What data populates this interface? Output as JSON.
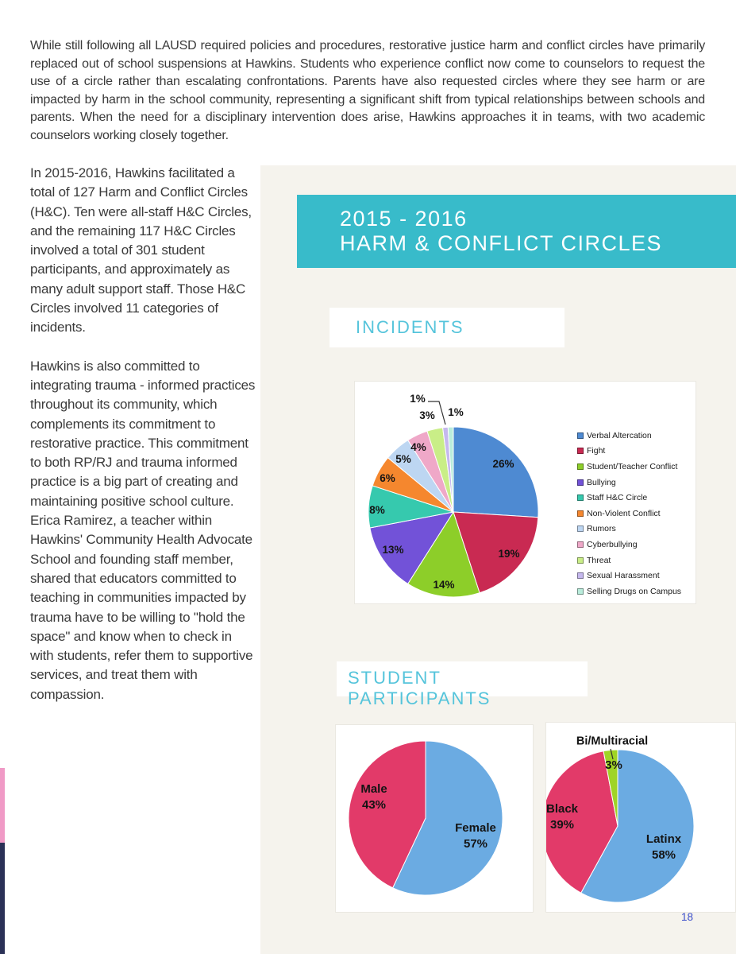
{
  "page": {
    "number": "18",
    "top_paragraph": "While still following all LAUSD required policies and procedures, restorative justice harm and conflict circles have primarily replaced out of school suspensions at Hawkins. Students who experience conflict now come to counselors to request the use of a circle rather than escalating confrontations. Parents have also requested circles where they see harm or are impacted by harm in the school community, representing a significant shift from typical relationships between schools and parents. When the need for a disciplinary intervention does arise, Hawkins approaches it in teams, with two academic counselors working closely together.",
    "left_column": {
      "para1": "In 2015-2016, Hawkins facilitated a total of 127 Harm and Conflict Circles (H&C). Ten were all-staff H&C Circles, and the remaining 117 H&C Circles involved a total of 301 student participants, and approximately as many adult support staff. Those H&C Circles involved 11 categories of incidents.",
      "para2": "Hawkins is also committed to integrating trauma - informed practices throughout its community, which complements its commitment to restorative practice. This commitment to both RP/RJ and trauma informed practice is a big part of creating and maintaining positive school culture. Erica Ramirez, a teacher within Hawkins' Community Health Advocate School and founding staff member, shared that educators committed to teaching in communities impacted by trauma have to be willing to \"hold the space\" and know when to check in with students, refer them to supportive services, and treat them with compassion."
    },
    "banner": {
      "line1": "2015 - 2016",
      "line2": "HARM & CONFLICT CIRCLES"
    },
    "section_headings": {
      "incidents": "INCIDENTS",
      "participants": "STUDENT PARTICIPANTS"
    }
  },
  "colors": {
    "banner_teal": "#38bbca",
    "heading_cyan": "#55c4db",
    "page_number_blue": "#3b4ecb",
    "panel_bg": "#f5f3ed",
    "edge_pink": "#f09ac6",
    "edge_navy": "#2b3157"
  },
  "chart_data": [
    {
      "id": "incidents",
      "type": "pie",
      "title": "INCIDENTS",
      "categories": [
        "Verbal Altercation",
        "Fight",
        "Student/Teacher Conflict",
        "Bullying",
        "Staff H&C Circle",
        "Non-Violent Conflict",
        "Rumors",
        "Cyberbullying",
        "Threat",
        "Sexual Harassment",
        "Selling Drugs on Campus"
      ],
      "values": [
        26,
        19,
        14,
        13,
        8,
        6,
        5,
        4,
        3,
        1,
        1
      ],
      "labels": [
        "26%",
        "19%",
        "14%",
        "13%",
        "8%",
        "6%",
        "5%",
        "4%",
        "3%",
        "1%",
        "1%"
      ],
      "colors": [
        "#4e8ad2",
        "#c92a52",
        "#8dce29",
        "#7252d8",
        "#36c9ae",
        "#f5872e",
        "#bdd6f2",
        "#efa8c8",
        "#c9ee87",
        "#c5b8ee",
        "#b9ecdb"
      ],
      "legend_position": "right",
      "start_angle_deg": 0,
      "direction": "clockwise",
      "label_font_px": 13.5,
      "label_positions": [
        [
          63,
          -60
        ],
        [
          70,
          53
        ],
        [
          -12,
          92
        ],
        [
          -76,
          48
        ],
        [
          -96,
          -2
        ],
        [
          -83,
          -42
        ],
        [
          -63,
          -66
        ],
        [
          -44,
          -81
        ],
        [
          -33,
          -121
        ],
        [
          -45,
          -142
        ],
        [
          3,
          -125
        ]
      ],
      "leader_lines": [
        {
          "points": [
            [
              -32,
              -139
            ],
            [
              -18,
              -139
            ],
            [
              -10,
              -110
            ]
          ]
        }
      ]
    },
    {
      "id": "gender",
      "type": "pie",
      "title": "STUDENT PARTICIPANTS",
      "categories": [
        "Female",
        "Male"
      ],
      "values": [
        57,
        43
      ],
      "labels": [
        "Female\n57%",
        "Male\n43%"
      ],
      "colors": [
        "#6babe2",
        "#e23a69"
      ],
      "legend_position": "none",
      "start_angle_deg": 0,
      "direction": "clockwise",
      "label_font_px": 15,
      "label_positions": [
        [
          63,
          23
        ],
        [
          -65,
          -26
        ]
      ]
    },
    {
      "id": "ethnicity",
      "type": "pie",
      "title": "STUDENT PARTICIPANTS",
      "categories": [
        "Latinx",
        "Black",
        "Bi/Multiracial"
      ],
      "values": [
        58,
        39,
        3
      ],
      "labels": [
        "Latinx\n58%",
        "Black\n39%",
        "3%"
      ],
      "colors": [
        "#6babe2",
        "#e23a69",
        "#9fd426"
      ],
      "legend_position": "none",
      "start_angle_deg": 0,
      "direction": "clockwise",
      "label_font_px": 15,
      "label_positions": [
        [
          58,
          27
        ],
        [
          -70,
          -11
        ],
        [
          -5,
          -76
        ]
      ],
      "outside_labels": [
        {
          "text": "Bi/Multiracial",
          "pos": [
            -7,
            -106
          ],
          "font_px": 14.5
        }
      ],
      "leader_lines": [
        {
          "points": [
            [
              -9,
              -97
            ],
            [
              -6,
              -84
            ]
          ]
        }
      ]
    }
  ]
}
